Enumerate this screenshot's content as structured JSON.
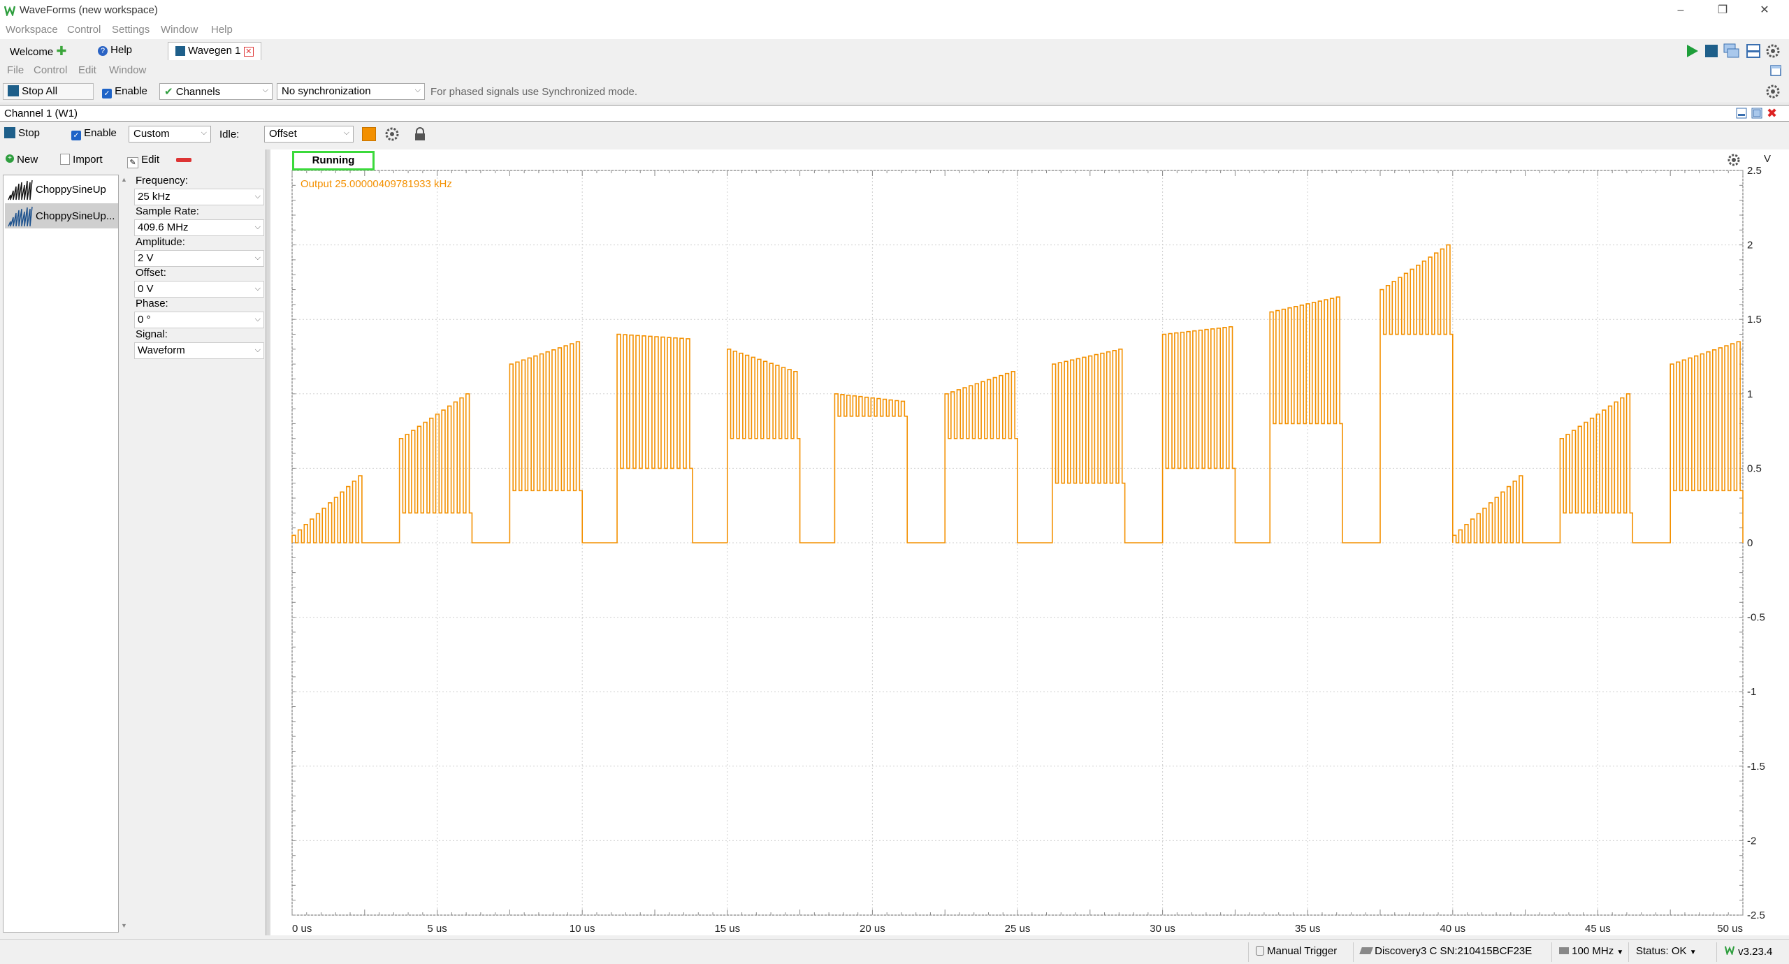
{
  "window": {
    "title": "WaveForms (new workspace)"
  },
  "app_menu": [
    "Workspace",
    "Control",
    "Settings",
    "Window",
    "Help"
  ],
  "tabs": [
    {
      "label": "Welcome"
    },
    {
      "label": "Help"
    },
    {
      "label": "Wavegen 1"
    }
  ],
  "sub_menu": [
    "File",
    "Control",
    "Edit",
    "Window"
  ],
  "toolbar": {
    "stop_all": "Stop All",
    "enable": "Enable",
    "channels": "Channels",
    "sync": "No synchronization",
    "hint": "For phased signals use Synchronized mode."
  },
  "channel": {
    "title": "Channel 1 (W1)",
    "stop": "Stop",
    "enable": "Enable",
    "mode": "Custom",
    "idle_label": "Idle:",
    "idle_value": "Offset",
    "color": "#f39000"
  },
  "waveform_panel": {
    "new": "New",
    "import": "Import",
    "edit": "Edit",
    "items": [
      "ChoppySineUp",
      "ChoppySineUp..."
    ]
  },
  "params": [
    {
      "label": "Frequency:",
      "value": "25 kHz"
    },
    {
      "label": "Sample Rate:",
      "value": "409.6 MHz"
    },
    {
      "label": "Amplitude:",
      "value": "2 V"
    },
    {
      "label": "Offset:",
      "value": "0 V"
    },
    {
      "label": "Phase:",
      "value": "0 °"
    },
    {
      "label": "Signal:",
      "value": "Waveform"
    }
  ],
  "plot": {
    "status": "Running",
    "output_label": "Output 25.00000409781933 kHz",
    "y_unit": "V",
    "y_ticks": [
      "2.5",
      "2",
      "1.5",
      "1",
      "0.5",
      "0",
      "-0.5",
      "-1",
      "-1.5",
      "-2",
      "-2.5"
    ],
    "x_ticks": [
      "0 us",
      "5 us",
      "10 us",
      "15 us",
      "20 us",
      "25 us",
      "30 us",
      "35 us",
      "40 us",
      "45 us",
      "50 us"
    ],
    "trace_color": "#f39000"
  },
  "chart_data": {
    "type": "line",
    "xlabel": "",
    "ylabel": "V",
    "xlim": [
      0,
      50
    ],
    "ylim": [
      -2.5,
      2.5
    ],
    "grid": true,
    "series": [
      {
        "name": "Output",
        "description_only": false,
        "bursts": [
          {
            "start": 0.0,
            "end": 2.5,
            "low": 0.0,
            "high_start": 0.05,
            "high_end": 0.45
          },
          {
            "start": 3.7,
            "end": 6.2,
            "low": 0.2,
            "high_start": 0.7,
            "high_end": 1.0
          },
          {
            "start": 7.5,
            "end": 10.0,
            "low": 0.35,
            "high_start": 1.2,
            "high_end": 1.35
          },
          {
            "start": 11.2,
            "end": 13.8,
            "low": 0.5,
            "high_start": 1.4,
            "high_end": 1.37
          },
          {
            "start": 15.0,
            "end": 17.5,
            "low": 0.7,
            "high_start": 1.3,
            "high_end": 1.15
          },
          {
            "start": 18.7,
            "end": 21.2,
            "low": 0.85,
            "high_start": 1.0,
            "high_end": 0.95
          },
          {
            "start": 22.5,
            "end": 25.0,
            "low": 0.7,
            "high_start": 1.0,
            "high_end": 1.15
          },
          {
            "start": 26.2,
            "end": 28.7,
            "low": 0.4,
            "high_start": 1.2,
            "high_end": 1.3
          },
          {
            "start": 30.0,
            "end": 32.5,
            "low": 0.5,
            "high_start": 1.4,
            "high_end": 1.45
          },
          {
            "start": 33.7,
            "end": 36.2,
            "low": 0.8,
            "high_start": 1.55,
            "high_end": 1.65
          },
          {
            "start": 37.5,
            "end": 40.0,
            "low": 1.4,
            "high_start": 1.7,
            "high_end": 2.0
          },
          {
            "start": 40.0,
            "end": 42.5,
            "low": 0.0,
            "high_start": 0.05,
            "high_end": 0.45
          },
          {
            "start": 43.7,
            "end": 46.2,
            "low": 0.2,
            "high_start": 0.7,
            "high_end": 1.0
          },
          {
            "start": 47.5,
            "end": 50.0,
            "low": 0.35,
            "high_start": 1.2,
            "high_end": 1.35
          }
        ]
      }
    ]
  },
  "statusbar": {
    "trigger": "Manual Trigger",
    "device": "Discovery3 C SN:210415BCF23E",
    "clock": "100 MHz",
    "status": "Status: OK",
    "version": "v3.23.4"
  }
}
